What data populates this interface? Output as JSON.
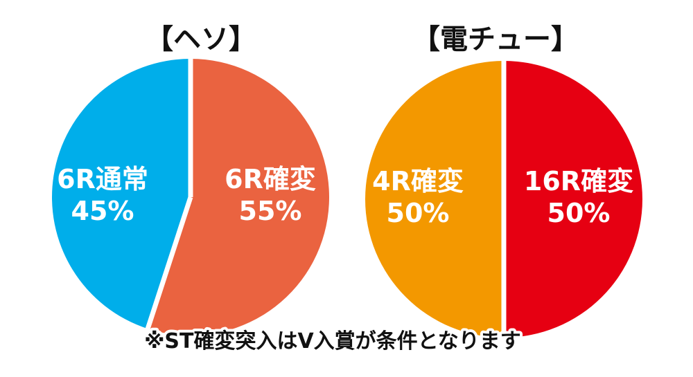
{
  "chart_data": [
    {
      "type": "pie",
      "title": "【ヘソ】",
      "slices": [
        {
          "label": "6R確変",
          "value": 55,
          "value_label": "55%",
          "color": "#EA6340"
        },
        {
          "label": "6R通常",
          "value": 45,
          "value_label": "45%",
          "color": "#00AEEA"
        }
      ]
    },
    {
      "type": "pie",
      "title": "【電チュー】",
      "slices": [
        {
          "label": "16R確変",
          "value": 50,
          "value_label": "50%",
          "color": "#E60012"
        },
        {
          "label": "4R確変",
          "value": 50,
          "value_label": "50%",
          "color": "#F39800"
        }
      ]
    }
  ],
  "footnote": "※ST確変突入はV入賞が条件となります",
  "colors": {
    "separator": "#ffffff",
    "text_on_slice": "#ffffff",
    "title": "#111111"
  }
}
